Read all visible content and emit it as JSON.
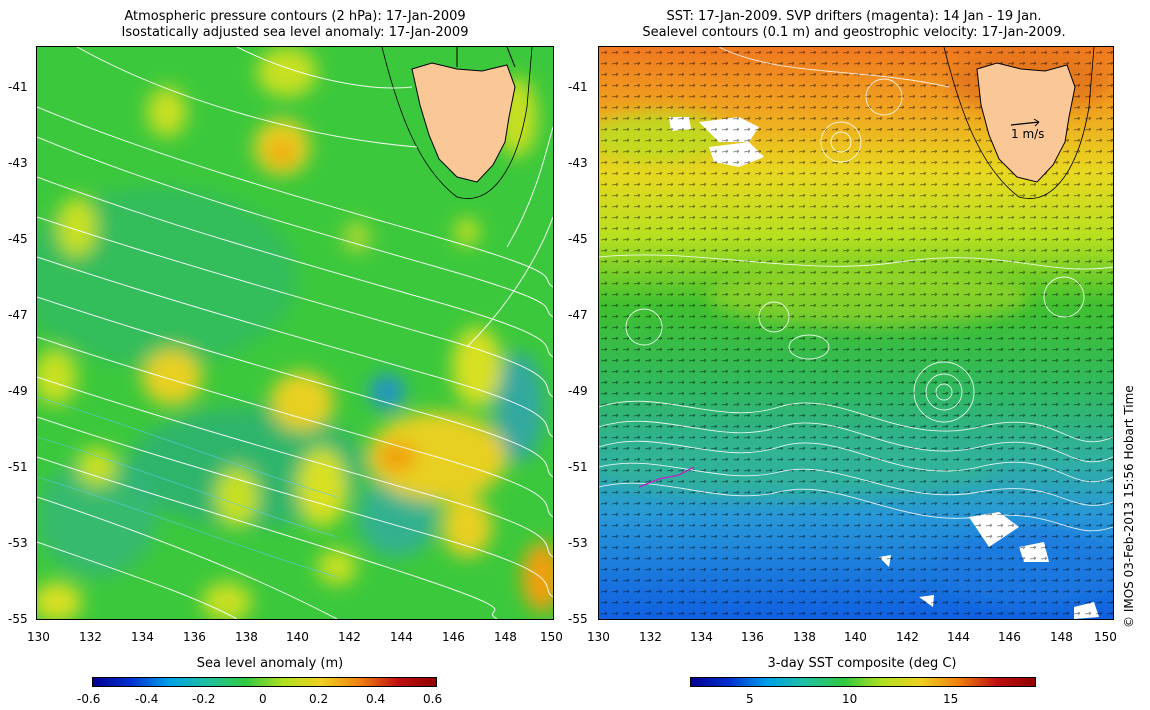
{
  "left_panel": {
    "title_line1": "Atmospheric pressure contours (2 hPa): 17-Jan-2009",
    "title_line2": "Isostatically adjusted sea level anomaly: 17-Jan-2009",
    "colorbar_label": "Sea level anomaly (m)",
    "colorbar_ticks": [
      "-0.6",
      "-0.4",
      "-0.2",
      "0",
      "0.2",
      "0.4",
      "0.6"
    ]
  },
  "right_panel": {
    "title_line1": "SST: 17-Jan-2009. SVP drifters (magenta): 14 Jan - 19 Jan.",
    "title_line2": "Sealevel contours (0.1 m) and geostrophic velocity: 17-Jan-2009.",
    "colorbar_label": "3-day SST composite (deg C)",
    "colorbar_ticks": [
      "5",
      "10",
      "15"
    ],
    "scale_arrow_label": "1 m/s"
  },
  "axes": {
    "lat_ticks": [
      "-41",
      "-43",
      "-45",
      "-47",
      "-49",
      "-51",
      "-53",
      "-55"
    ],
    "lon_ticks": [
      "130",
      "132",
      "134",
      "136",
      "138",
      "140",
      "142",
      "144",
      "146",
      "148",
      "150"
    ]
  },
  "credit": "© IMOS 03-Feb-2013 15:56 Hobart Time",
  "colors": {
    "land": "#fac896",
    "ssa_background": "#38c838",
    "sst_warm": "#f07820",
    "sst_cold": "#1060e0"
  }
}
